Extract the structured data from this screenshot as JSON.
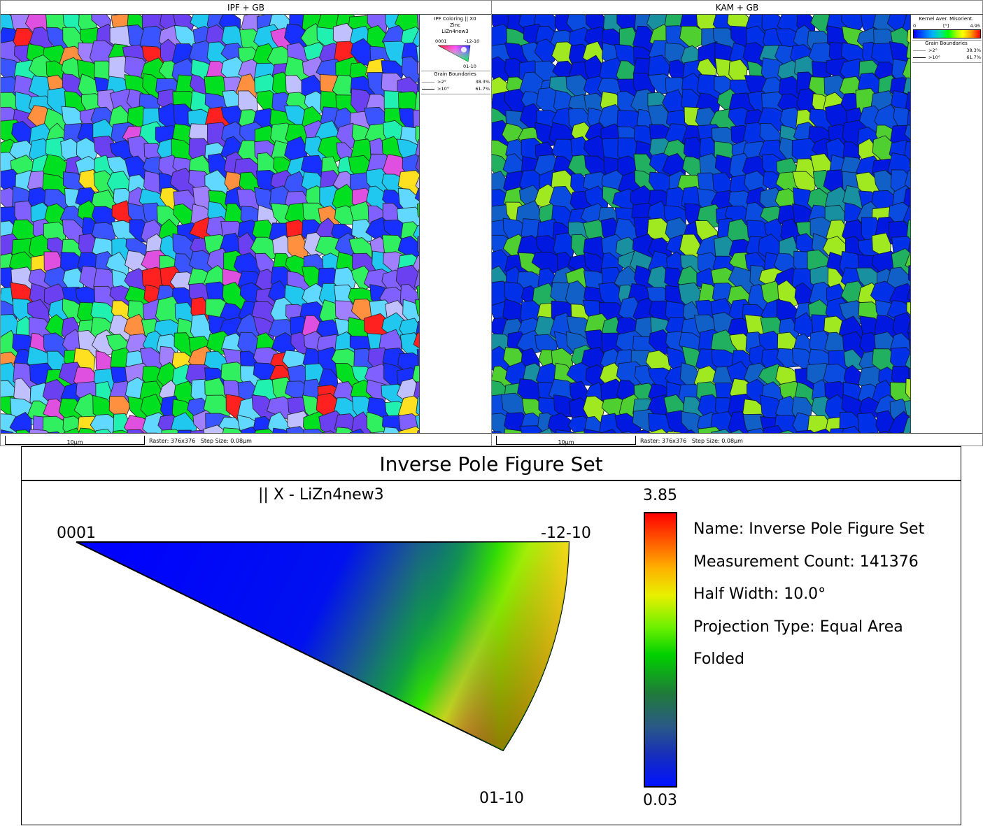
{
  "ipf_panel": {
    "title": "IPF + GB",
    "legend": {
      "heading": "IPF Coloring || X0",
      "phase": "Zinc",
      "dataset": "LiZn4new3",
      "corner_0001": "0001",
      "corner_m12m10": "-12-10",
      "corner_01m10": "01-10"
    },
    "grain_boundaries": {
      "heading": "Grain Boundaries",
      "rows": [
        {
          "label": ">2°",
          "value": "38.3%",
          "color": "#9a9a9a"
        },
        {
          "label": ">10°",
          "value": "61.7%",
          "color": "#000000"
        }
      ]
    },
    "scale_label": "10µm",
    "raster": "Raster: 376x376",
    "step": "Step Size: 0.08µm"
  },
  "kam_panel": {
    "title": "KAM + GB",
    "legend": {
      "heading": "Kernel Aver. Misorient.",
      "min": "0",
      "unit": "[°]",
      "max": "4.95"
    },
    "grain_boundaries": {
      "heading": "Grain Boundaries",
      "rows": [
        {
          "label": ">2°",
          "value": "38.3%",
          "color": "#9a9a9a"
        },
        {
          "label": ">10°",
          "value": "61.7%",
          "color": "#000000"
        }
      ]
    },
    "scale_label": "10µm",
    "raster": "Raster: 376x376",
    "step": "Step Size: 0.08µm"
  },
  "ipf_set": {
    "title": "Inverse Pole Figure Set",
    "subtitle": "|| X - LiZn4new3",
    "corner_0001": "0001",
    "corner_m12m10": "-12-10",
    "corner_01m10": "01-10",
    "colorbar_max": "3.85",
    "colorbar_min": "0.03",
    "info": [
      "Name: Inverse Pole Figure Set",
      "Measurement Count: 141376",
      "Half Width: 10.0°",
      "Projection Type: Equal Area",
      "Folded"
    ]
  },
  "colors": {
    "ipf_palette": [
      "#00e020",
      "#30f060",
      "#1830ff",
      "#3a55ff",
      "#6a40f0",
      "#8060ff",
      "#20c8f0",
      "#60d8ff",
      "#a080ff",
      "#ff2020",
      "#ffe020",
      "#ff9040",
      "#e050e0",
      "#20f0b0",
      "#c0c0ff"
    ],
    "kam_palette": [
      "#0018e0",
      "#0030e8",
      "#0a4ce0",
      "#1060c8",
      "#1890a0",
      "#20b060",
      "#50d030",
      "#a0e820"
    ]
  }
}
